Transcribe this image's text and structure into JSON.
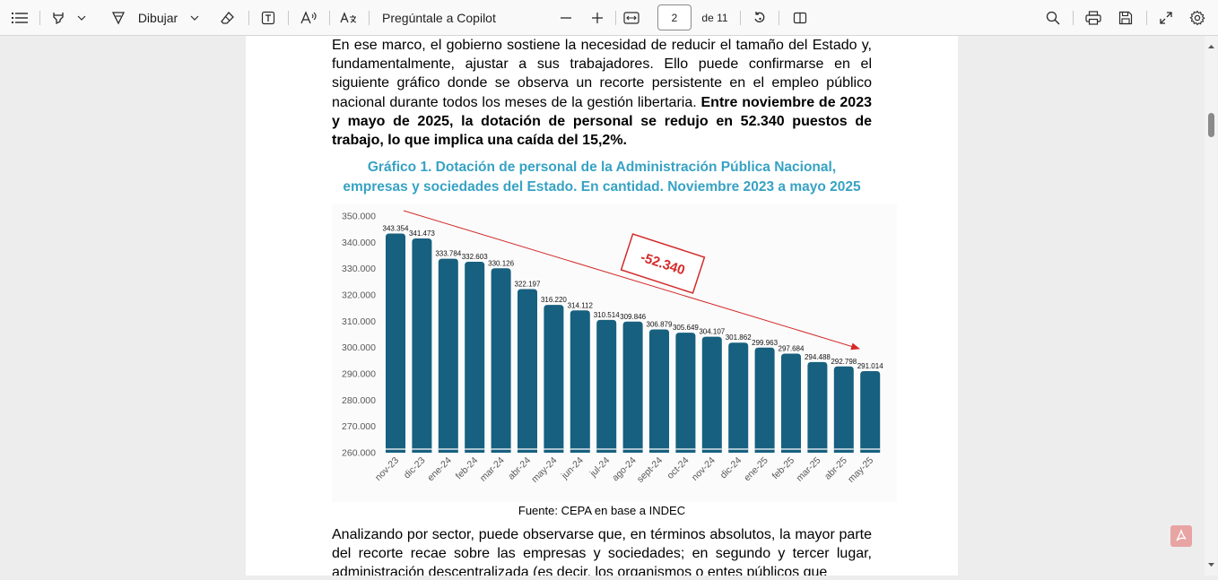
{
  "toolbar": {
    "draw_label": "Dibujar",
    "copilot_label": "Pregúntale a Copilot",
    "page_number": "2",
    "page_total": "de 11"
  },
  "document": {
    "para1_lead": "En ese marco, el gobierno sostiene la necesidad de reducir el tamaño del Estado y, fundamentalmente, ajustar a sus trabajadores. Ello puede confirmarse en el siguiente gráfico donde se observa un recorte persistente en el empleo público nacional durante todos los meses de la gestión libertaria. ",
    "para1_bold": "Entre noviembre de 2023 y mayo de 2025, la dotación de personal se redujo en 52.340 puestos de trabajo, lo que implica una caída del 15,2%.",
    "chart_title_line1": "Gráfico 1. Dotación de personal de la Administración Pública Nacional,",
    "chart_title_line2": "empresas y sociedades del Estado. En cantidad. Noviembre 2023 a mayo 2025",
    "source": "Fuente: CEPA en base a INDEC",
    "para2": "Analizando por sector, puede observarse que, en términos absolutos, la mayor parte del recorte recae sobre las empresas y sociedades; en segundo y tercer lugar, administración descentralizada (es decir, los organismos o entes públicos que"
  },
  "chart_data": {
    "type": "bar",
    "categories": [
      "nov-23",
      "dic-23",
      "ene-24",
      "feb-24",
      "mar-24",
      "abr-24",
      "may-24",
      "jun-24",
      "jul-24",
      "ago-24",
      "sept-24",
      "oct-24",
      "nov-24",
      "dic-24",
      "ene-25",
      "feb-25",
      "mar-25",
      "abr-25",
      "may-25"
    ],
    "values": [
      343354,
      341473,
      333784,
      332603,
      330126,
      322197,
      316220,
      314112,
      310514,
      309846,
      306879,
      305649,
      304107,
      301862,
      299963,
      297684,
      294488,
      292798,
      291014
    ],
    "value_labels": [
      "343.354",
      "341.473",
      "333.784",
      "332.603",
      "330.126",
      "322.197",
      "316.220",
      "314.112",
      "310.514",
      "309.846",
      "306.879",
      "305.649",
      "304.107",
      "301.862",
      "299.963",
      "297.684",
      "294.488",
      "292.798",
      "291.014"
    ],
    "ylim": [
      260000,
      350000
    ],
    "yticks": [
      "260.000",
      "270.000",
      "280.000",
      "290.000",
      "300.000",
      "310.000",
      "320.000",
      "330.000",
      "340.000",
      "350.000"
    ],
    "annotation": "-52.340",
    "bar_color": "#17607f",
    "arrow_color": "#d42a2a",
    "grid": false
  }
}
